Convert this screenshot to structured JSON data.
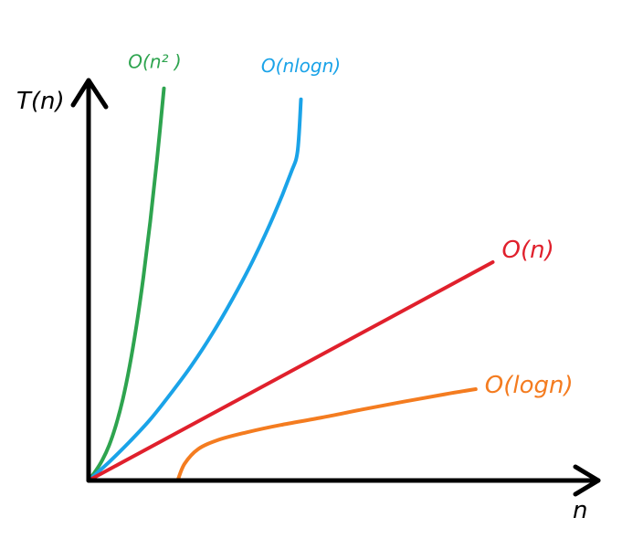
{
  "chart_data": {
    "type": "line",
    "xlabel": "n",
    "ylabel": "T(n)",
    "grid": false,
    "legend": "none (series labels placed at end of each curve)",
    "series": [
      {
        "name": "O(n² )",
        "color": "#2ea44f",
        "points": [
          [
            0,
            0
          ],
          [
            0.1,
            0.25
          ],
          [
            0.2,
            0.55
          ],
          [
            0.3,
            0.95
          ],
          [
            0.4,
            1.5
          ],
          [
            0.5,
            2.2
          ],
          [
            0.6,
            3.1
          ],
          [
            0.7,
            4.2
          ],
          [
            0.8,
            5.5
          ],
          [
            0.9,
            7.0
          ],
          [
            1.0,
            8.7
          ],
          [
            1.1,
            10.6
          ]
        ]
      },
      {
        "name": "O(nlogn)",
        "color": "#1aa3e8",
        "points": [
          [
            0,
            0
          ],
          [
            0.3,
            0.5
          ],
          [
            0.6,
            1.05
          ],
          [
            0.9,
            1.65
          ],
          [
            1.2,
            2.35
          ],
          [
            1.5,
            3.1
          ],
          [
            1.8,
            3.95
          ],
          [
            2.1,
            4.9
          ],
          [
            2.4,
            5.95
          ],
          [
            2.7,
            7.15
          ],
          [
            2.95,
            8.3
          ],
          [
            3.05,
            8.9
          ],
          [
            3.1,
            10.3
          ]
        ]
      },
      {
        "name": "O(n)",
        "color": "#e0202c",
        "points": [
          [
            0,
            0
          ],
          [
            1,
            1.0
          ],
          [
            2,
            2.0
          ],
          [
            3,
            3.0
          ],
          [
            4,
            4.0
          ],
          [
            5,
            5.0
          ],
          [
            5.9,
            5.9
          ]
        ]
      },
      {
        "name": "O(logn)",
        "color": "#f47c20",
        "points": [
          [
            1.3,
            0
          ],
          [
            1.4,
            0.45
          ],
          [
            1.6,
            0.85
          ],
          [
            1.9,
            1.1
          ],
          [
            2.3,
            1.3
          ],
          [
            2.8,
            1.5
          ],
          [
            3.4,
            1.7
          ],
          [
            4.0,
            1.92
          ],
          [
            4.6,
            2.13
          ],
          [
            5.2,
            2.33
          ],
          [
            5.65,
            2.47
          ]
        ]
      }
    ]
  }
}
